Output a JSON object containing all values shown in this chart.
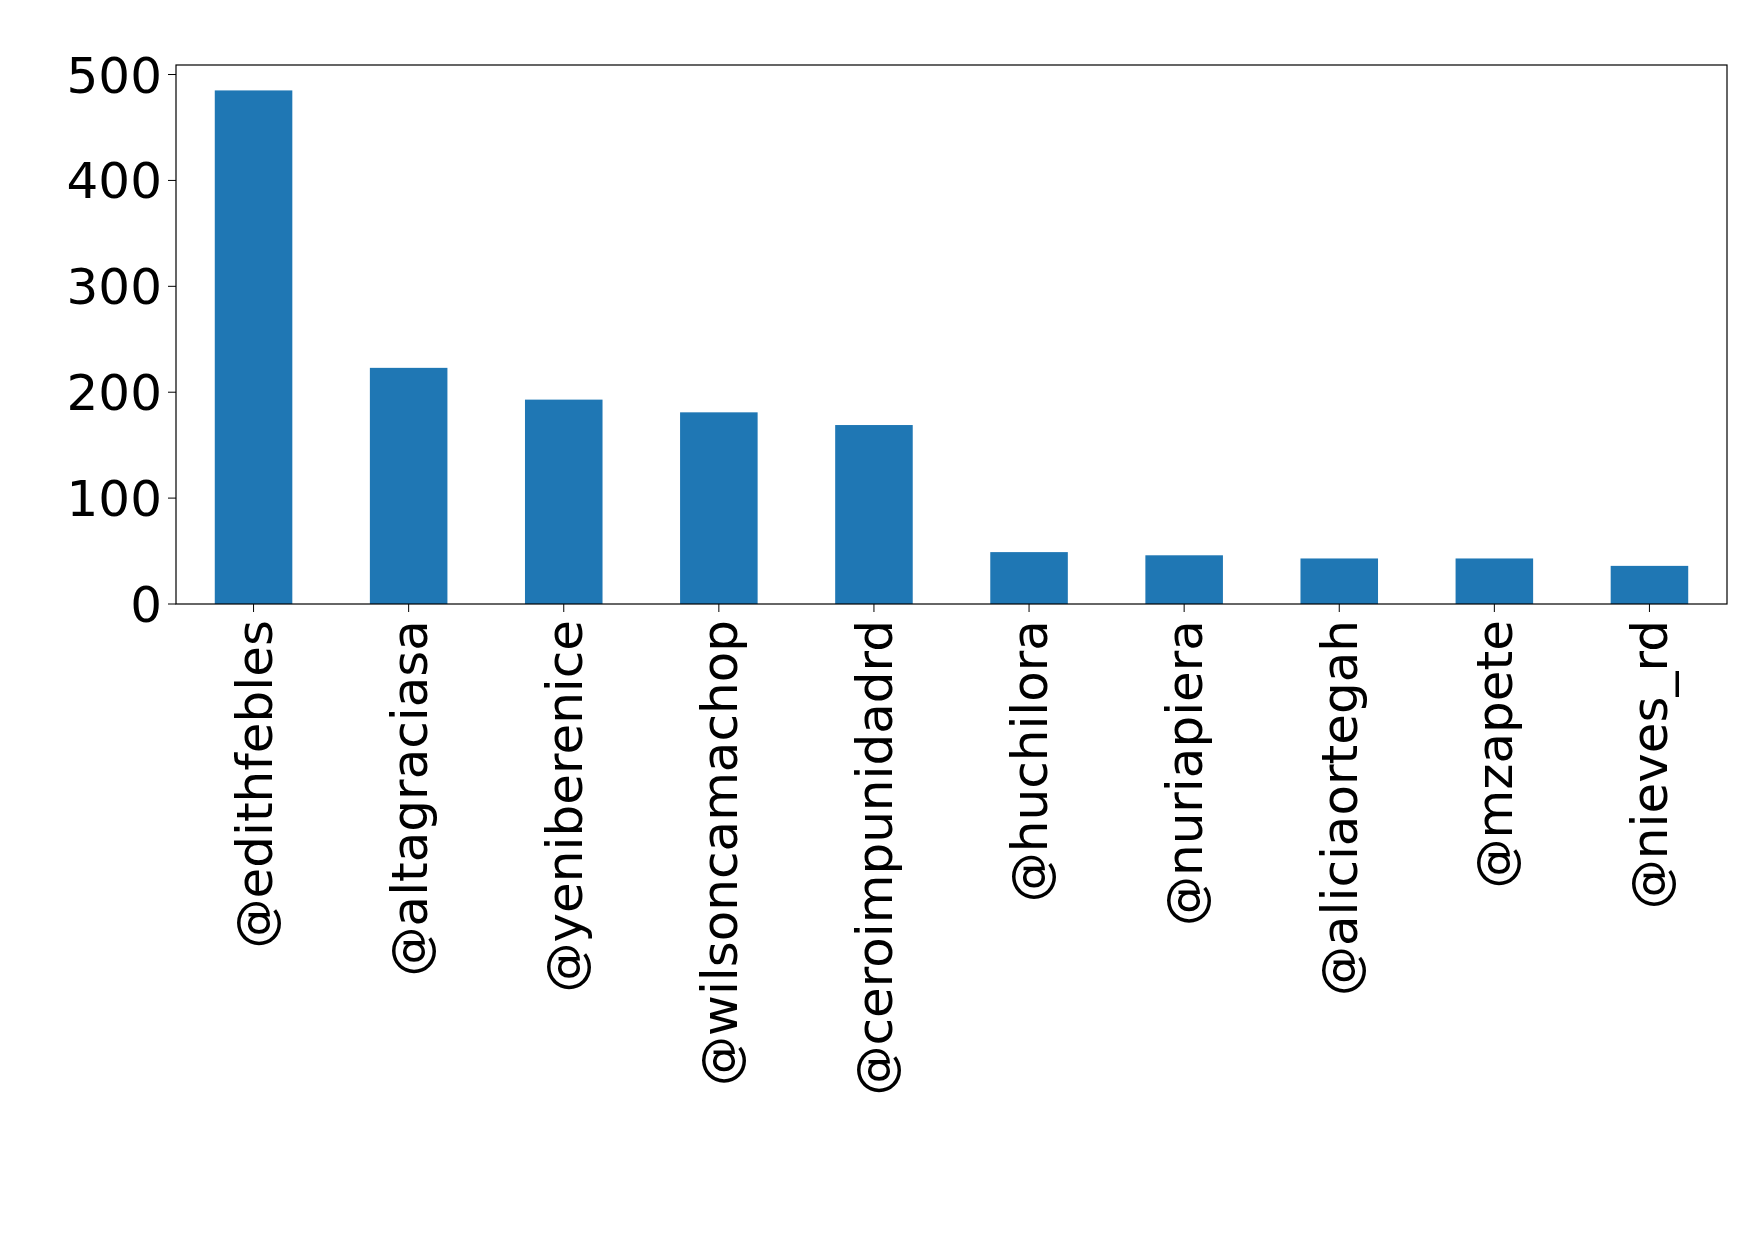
{
  "chart_data": {
    "type": "bar",
    "categories": [
      "@edithfebles",
      "@altagraciasa",
      "@yeniberenice",
      "@wilsoncamachop",
      "@ceroimpunidadrd",
      "@huchilora",
      "@nuriapiera",
      "@aliciaortegah",
      "@mzapete",
      "@nieves_rd"
    ],
    "values": [
      485,
      223,
      193,
      181,
      169,
      49,
      46,
      43,
      43,
      36
    ],
    "color": "#1f77b4",
    "ylim": [
      0,
      509
    ],
    "yticks": [
      0,
      100,
      200,
      300,
      400,
      500
    ],
    "grid": false
  }
}
